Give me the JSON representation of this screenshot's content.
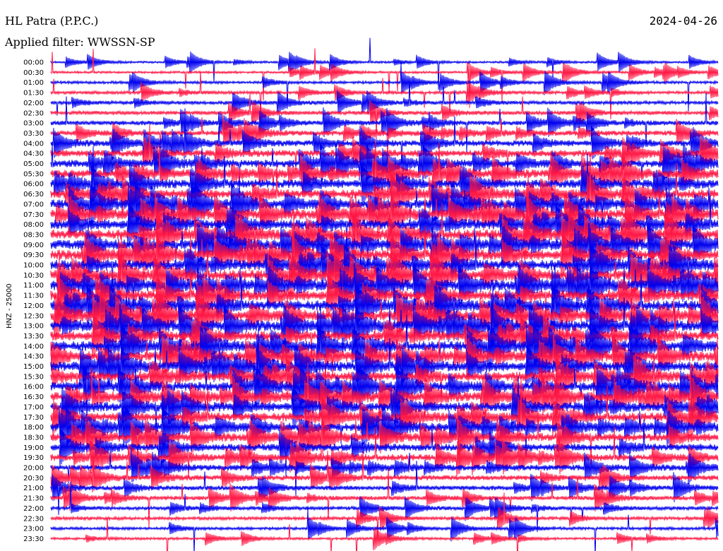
{
  "header": {
    "station": "HL Patra (P.P.C.)",
    "filter": "Applied filter: WWSSN-SP",
    "date": "2024-04-26"
  },
  "chart_data": {
    "type": "line",
    "title": "HL Patra (P.P.C.)",
    "ylabel": "HNZ - 25000",
    "row_labels": [
      "00:00",
      "00:30",
      "01:00",
      "01:30",
      "02:00",
      "02:30",
      "03:00",
      "03:30",
      "04:00",
      "04:30",
      "05:00",
      "05:30",
      "06:00",
      "06:30",
      "07:00",
      "07:30",
      "08:00",
      "08:30",
      "09:00",
      "09:30",
      "10:00",
      "10:30",
      "11:00",
      "11:30",
      "12:00",
      "12:30",
      "13:00",
      "13:30",
      "14:00",
      "14:30",
      "15:00",
      "15:30",
      "16:00",
      "16:30",
      "17:00",
      "17:30",
      "18:00",
      "18:30",
      "19:00",
      "19:30",
      "20:00",
      "20:30",
      "21:00",
      "21:30",
      "22:00",
      "22:30",
      "23:00",
      "23:30"
    ],
    "colors": [
      "#0000ee",
      "#ff1744"
    ],
    "activity": [
      0.08,
      0.1,
      0.14,
      0.17,
      0.2,
      0.23,
      0.28,
      0.33,
      0.4,
      0.47,
      0.52,
      0.56,
      0.6,
      0.64,
      0.66,
      0.68,
      0.7,
      0.71,
      0.72,
      0.72,
      0.73,
      0.74,
      0.74,
      0.73,
      0.73,
      0.73,
      0.72,
      0.71,
      0.7,
      0.69,
      0.68,
      0.67,
      0.66,
      0.65,
      0.64,
      0.62,
      0.59,
      0.55,
      0.5,
      0.44,
      0.38,
      0.33,
      0.29,
      0.25,
      0.21,
      0.18,
      0.15,
      0.12
    ]
  }
}
